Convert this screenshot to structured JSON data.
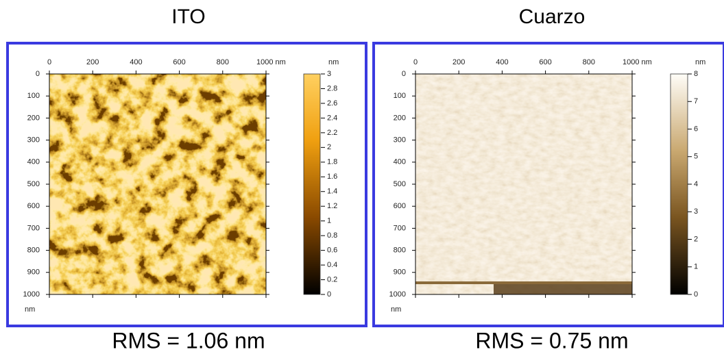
{
  "panels": [
    {
      "title": "ITO",
      "x_ticks": [
        "0",
        "200",
        "400",
        "600",
        "800",
        "1000 nm"
      ],
      "y_ticks": [
        "0",
        "100",
        "200",
        "300",
        "400",
        "500",
        "600",
        "700",
        "800",
        "900",
        "1000"
      ],
      "y_unit": "nm",
      "colorbar_unit": "nm",
      "colorbar_ticks": [
        "3",
        "2.8",
        "2.6",
        "2.4",
        "2.2",
        "2",
        "1.8",
        "1.6",
        "1.4",
        "1.2",
        "1",
        "0.8",
        "0.6",
        "0.4",
        "0.2",
        "0"
      ],
      "rms": "RMS = 1.06 nm"
    },
    {
      "title": "Cuarzo",
      "x_ticks": [
        "0",
        "200",
        "400",
        "600",
        "800",
        "1000 nm"
      ],
      "y_ticks": [
        "0",
        "100",
        "200",
        "300",
        "400",
        "500",
        "600",
        "700",
        "800",
        "900",
        "1000"
      ],
      "y_unit": "nm",
      "colorbar_unit": "nm",
      "colorbar_ticks": [
        "8",
        "7",
        "6",
        "5",
        "4",
        "3",
        "2",
        "1",
        "0"
      ],
      "rms": "RMS = 0.75 nm"
    }
  ]
}
